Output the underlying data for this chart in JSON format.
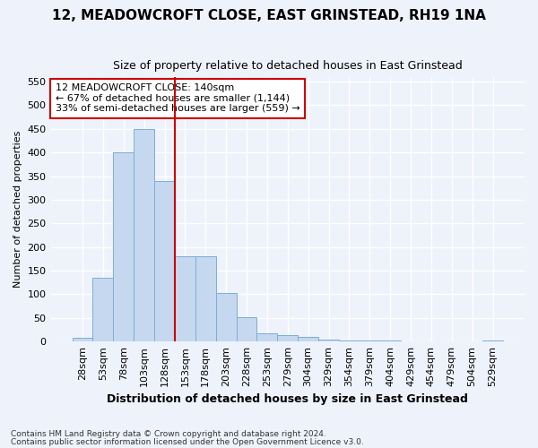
{
  "title": "12, MEADOWCROFT CLOSE, EAST GRINSTEAD, RH19 1NA",
  "subtitle": "Size of property relative to detached houses in East Grinstead",
  "xlabel": "Distribution of detached houses by size in East Grinstead",
  "ylabel": "Number of detached properties",
  "categories": [
    "28sqm",
    "53sqm",
    "78sqm",
    "103sqm",
    "128sqm",
    "153sqm",
    "178sqm",
    "203sqm",
    "228sqm",
    "253sqm",
    "279sqm",
    "304sqm",
    "329sqm",
    "354sqm",
    "379sqm",
    "404sqm",
    "429sqm",
    "454sqm",
    "479sqm",
    "504sqm",
    "529sqm"
  ],
  "values": [
    8,
    135,
    400,
    450,
    340,
    180,
    180,
    103,
    52,
    18,
    13,
    10,
    5,
    3,
    3,
    3,
    0,
    0,
    0,
    0,
    3
  ],
  "bar_color": "#c5d8f0",
  "bar_edge_color": "#7aafd4",
  "red_line_index": 4.5,
  "annotation_text": "12 MEADOWCROFT CLOSE: 140sqm\n← 67% of detached houses are smaller (1,144)\n33% of semi-detached houses are larger (559) →",
  "annotation_box_facecolor": "#ffffff",
  "annotation_box_edgecolor": "#cc0000",
  "ylim": [
    0,
    560
  ],
  "yticks": [
    0,
    50,
    100,
    150,
    200,
    250,
    300,
    350,
    400,
    450,
    500,
    550
  ],
  "footnote1": "Contains HM Land Registry data © Crown copyright and database right 2024.",
  "footnote2": "Contains public sector information licensed under the Open Government Licence v3.0.",
  "background_color": "#eef2fb",
  "grid_color": "#ffffff",
  "title_fontsize": 11,
  "subtitle_fontsize": 9,
  "xlabel_fontsize": 9,
  "ylabel_fontsize": 8,
  "tick_fontsize": 8,
  "annot_fontsize": 8,
  "footnote_fontsize": 6.5
}
